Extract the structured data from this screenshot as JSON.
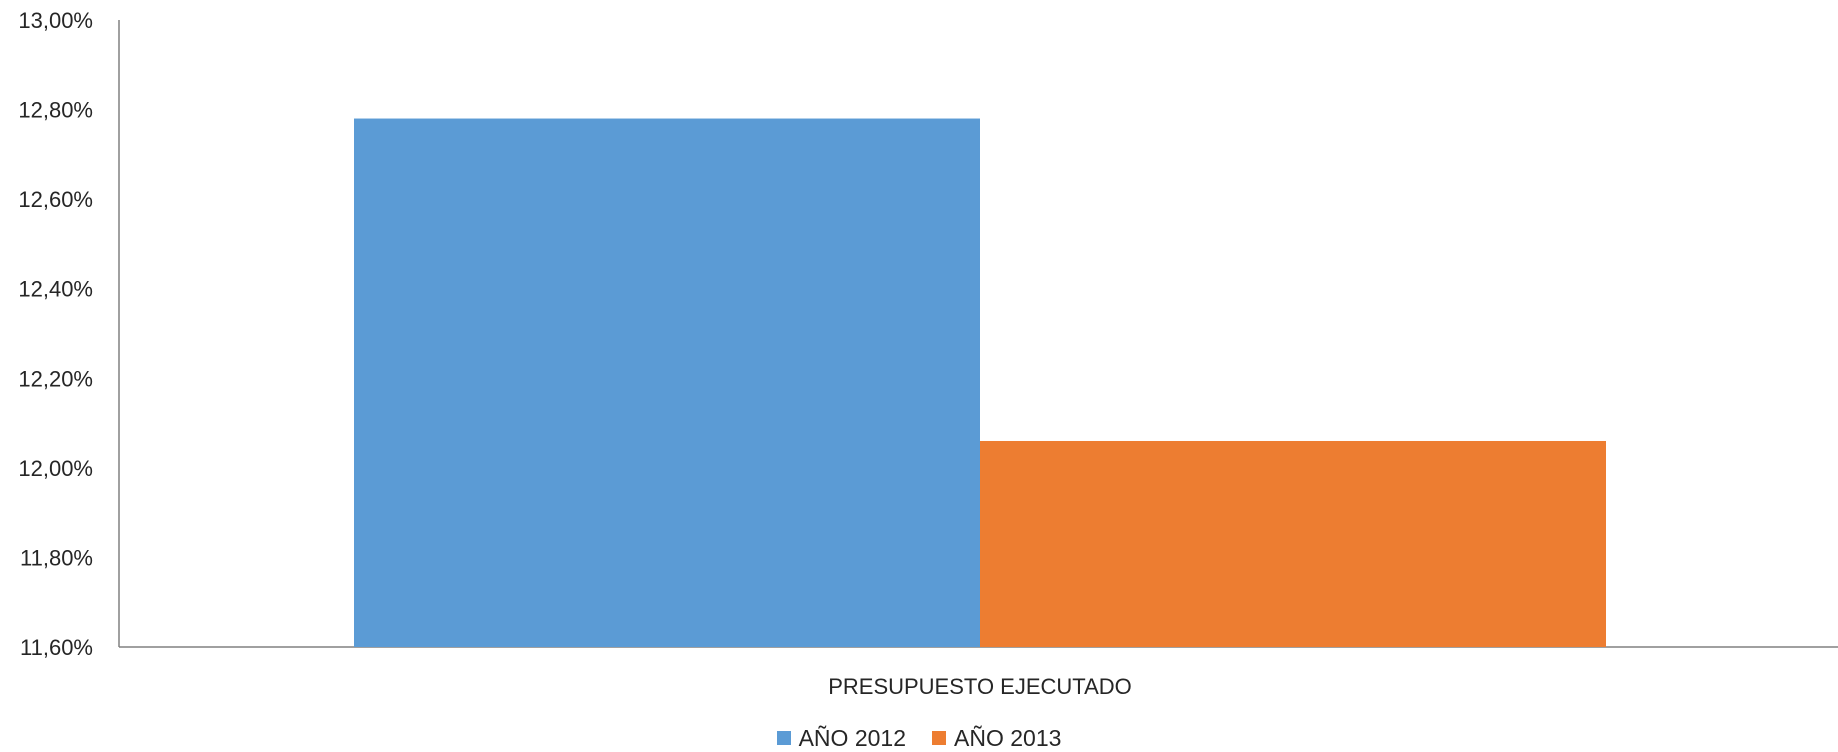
{
  "chart_data": {
    "type": "bar",
    "categories": [
      "PRESUPUESTO EJECUTADO"
    ],
    "series": [
      {
        "name": "AÑO 2012",
        "values": [
          12.78
        ],
        "color": "#5B9BD5"
      },
      {
        "name": "AÑO 2013",
        "values": [
          12.06
        ],
        "color": "#ED7D31"
      }
    ],
    "ylim": [
      11.6,
      13.0
    ],
    "y_ticks": [
      "11,60%",
      "11,80%",
      "12,00%",
      "12,20%",
      "12,40%",
      "12,60%",
      "12,80%",
      "13,00%"
    ],
    "y_tick_values": [
      11.6,
      11.8,
      12.0,
      12.2,
      12.4,
      12.6,
      12.8,
      13.0
    ],
    "y_unit": "%",
    "grid": false,
    "legend_position": "bottom",
    "axis_color": "#808080",
    "tick_text_color": "#262626"
  }
}
